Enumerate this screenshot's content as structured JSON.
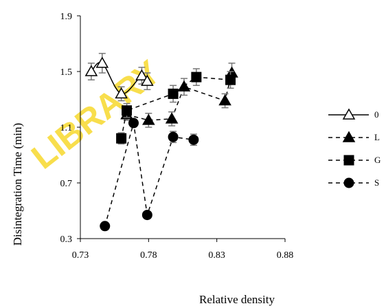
{
  "watermark": "LIBRARY",
  "chart_data": {
    "type": "line",
    "title": "",
    "xlabel": "Relative density",
    "ylabel": "Disintegration Time (min)",
    "xlim": [
      0.73,
      0.88
    ],
    "ylim": [
      0.3,
      1.9
    ],
    "xticks": [
      "0.73",
      "0.78",
      "0.83",
      "0.88"
    ],
    "yticks": [
      "0.3",
      "0.7",
      "1.1",
      "1.5",
      "1.9"
    ],
    "legend_position": "right",
    "series": [
      {
        "name": "0",
        "marker": "open-triangle",
        "line": "solid",
        "smooth": true,
        "x": [
          0.738,
          0.746,
          0.76,
          0.775,
          0.779
        ],
        "y": [
          1.5,
          1.56,
          1.34,
          1.47,
          1.43
        ],
        "err": [
          0.06,
          0.07,
          0.05,
          0.06,
          0.06
        ]
      },
      {
        "name": "L",
        "marker": "filled-triangle",
        "line": "dashed",
        "x": [
          0.764,
          0.78,
          0.797,
          0.806,
          0.836,
          0.841
        ],
        "y": [
          1.19,
          1.15,
          1.16,
          1.39,
          1.29,
          1.49
        ],
        "err": [
          0.04,
          0.05,
          0.05,
          0.06,
          0.05,
          0.07
        ]
      },
      {
        "name": "G",
        "marker": "filled-square",
        "line": "dashed",
        "x": [
          0.76,
          0.764,
          0.798,
          0.815,
          0.84
        ],
        "y": [
          1.02,
          1.22,
          1.34,
          1.46,
          1.44
        ],
        "err": [
          0.04,
          0.05,
          0.06,
          0.06,
          0.06
        ]
      },
      {
        "name": "S",
        "marker": "filled-circle",
        "line": "dashed",
        "x": [
          0.748,
          0.769,
          0.779,
          0.798,
          0.813
        ],
        "y": [
          0.39,
          1.13,
          0.47,
          1.03,
          1.01
        ],
        "err": [
          0,
          0,
          0,
          0.04,
          0.04
        ]
      }
    ]
  }
}
